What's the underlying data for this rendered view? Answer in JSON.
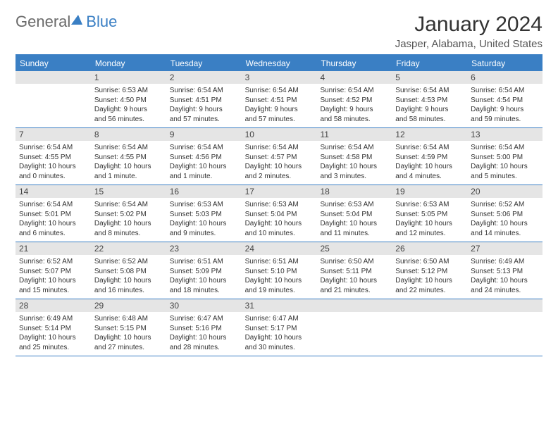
{
  "logo": {
    "part1": "General",
    "part2": "Blue"
  },
  "title": "January 2024",
  "location": "Jasper, Alabama, United States",
  "colors": {
    "accent": "#3a7fc4",
    "daybar": "#e5e5e5",
    "text": "#333333",
    "bg": "#ffffff"
  },
  "weekdays": [
    "Sunday",
    "Monday",
    "Tuesday",
    "Wednesday",
    "Thursday",
    "Friday",
    "Saturday"
  ],
  "weeks": [
    [
      {
        "day": ""
      },
      {
        "day": "1",
        "sunrise": "Sunrise: 6:53 AM",
        "sunset": "Sunset: 4:50 PM",
        "daylight1": "Daylight: 9 hours",
        "daylight2": "and 56 minutes."
      },
      {
        "day": "2",
        "sunrise": "Sunrise: 6:54 AM",
        "sunset": "Sunset: 4:51 PM",
        "daylight1": "Daylight: 9 hours",
        "daylight2": "and 57 minutes."
      },
      {
        "day": "3",
        "sunrise": "Sunrise: 6:54 AM",
        "sunset": "Sunset: 4:51 PM",
        "daylight1": "Daylight: 9 hours",
        "daylight2": "and 57 minutes."
      },
      {
        "day": "4",
        "sunrise": "Sunrise: 6:54 AM",
        "sunset": "Sunset: 4:52 PM",
        "daylight1": "Daylight: 9 hours",
        "daylight2": "and 58 minutes."
      },
      {
        "day": "5",
        "sunrise": "Sunrise: 6:54 AM",
        "sunset": "Sunset: 4:53 PM",
        "daylight1": "Daylight: 9 hours",
        "daylight2": "and 58 minutes."
      },
      {
        "day": "6",
        "sunrise": "Sunrise: 6:54 AM",
        "sunset": "Sunset: 4:54 PM",
        "daylight1": "Daylight: 9 hours",
        "daylight2": "and 59 minutes."
      }
    ],
    [
      {
        "day": "7",
        "sunrise": "Sunrise: 6:54 AM",
        "sunset": "Sunset: 4:55 PM",
        "daylight1": "Daylight: 10 hours",
        "daylight2": "and 0 minutes."
      },
      {
        "day": "8",
        "sunrise": "Sunrise: 6:54 AM",
        "sunset": "Sunset: 4:55 PM",
        "daylight1": "Daylight: 10 hours",
        "daylight2": "and 1 minute."
      },
      {
        "day": "9",
        "sunrise": "Sunrise: 6:54 AM",
        "sunset": "Sunset: 4:56 PM",
        "daylight1": "Daylight: 10 hours",
        "daylight2": "and 1 minute."
      },
      {
        "day": "10",
        "sunrise": "Sunrise: 6:54 AM",
        "sunset": "Sunset: 4:57 PM",
        "daylight1": "Daylight: 10 hours",
        "daylight2": "and 2 minutes."
      },
      {
        "day": "11",
        "sunrise": "Sunrise: 6:54 AM",
        "sunset": "Sunset: 4:58 PM",
        "daylight1": "Daylight: 10 hours",
        "daylight2": "and 3 minutes."
      },
      {
        "day": "12",
        "sunrise": "Sunrise: 6:54 AM",
        "sunset": "Sunset: 4:59 PM",
        "daylight1": "Daylight: 10 hours",
        "daylight2": "and 4 minutes."
      },
      {
        "day": "13",
        "sunrise": "Sunrise: 6:54 AM",
        "sunset": "Sunset: 5:00 PM",
        "daylight1": "Daylight: 10 hours",
        "daylight2": "and 5 minutes."
      }
    ],
    [
      {
        "day": "14",
        "sunrise": "Sunrise: 6:54 AM",
        "sunset": "Sunset: 5:01 PM",
        "daylight1": "Daylight: 10 hours",
        "daylight2": "and 6 minutes."
      },
      {
        "day": "15",
        "sunrise": "Sunrise: 6:54 AM",
        "sunset": "Sunset: 5:02 PM",
        "daylight1": "Daylight: 10 hours",
        "daylight2": "and 8 minutes."
      },
      {
        "day": "16",
        "sunrise": "Sunrise: 6:53 AM",
        "sunset": "Sunset: 5:03 PM",
        "daylight1": "Daylight: 10 hours",
        "daylight2": "and 9 minutes."
      },
      {
        "day": "17",
        "sunrise": "Sunrise: 6:53 AM",
        "sunset": "Sunset: 5:04 PM",
        "daylight1": "Daylight: 10 hours",
        "daylight2": "and 10 minutes."
      },
      {
        "day": "18",
        "sunrise": "Sunrise: 6:53 AM",
        "sunset": "Sunset: 5:04 PM",
        "daylight1": "Daylight: 10 hours",
        "daylight2": "and 11 minutes."
      },
      {
        "day": "19",
        "sunrise": "Sunrise: 6:53 AM",
        "sunset": "Sunset: 5:05 PM",
        "daylight1": "Daylight: 10 hours",
        "daylight2": "and 12 minutes."
      },
      {
        "day": "20",
        "sunrise": "Sunrise: 6:52 AM",
        "sunset": "Sunset: 5:06 PM",
        "daylight1": "Daylight: 10 hours",
        "daylight2": "and 14 minutes."
      }
    ],
    [
      {
        "day": "21",
        "sunrise": "Sunrise: 6:52 AM",
        "sunset": "Sunset: 5:07 PM",
        "daylight1": "Daylight: 10 hours",
        "daylight2": "and 15 minutes."
      },
      {
        "day": "22",
        "sunrise": "Sunrise: 6:52 AM",
        "sunset": "Sunset: 5:08 PM",
        "daylight1": "Daylight: 10 hours",
        "daylight2": "and 16 minutes."
      },
      {
        "day": "23",
        "sunrise": "Sunrise: 6:51 AM",
        "sunset": "Sunset: 5:09 PM",
        "daylight1": "Daylight: 10 hours",
        "daylight2": "and 18 minutes."
      },
      {
        "day": "24",
        "sunrise": "Sunrise: 6:51 AM",
        "sunset": "Sunset: 5:10 PM",
        "daylight1": "Daylight: 10 hours",
        "daylight2": "and 19 minutes."
      },
      {
        "day": "25",
        "sunrise": "Sunrise: 6:50 AM",
        "sunset": "Sunset: 5:11 PM",
        "daylight1": "Daylight: 10 hours",
        "daylight2": "and 21 minutes."
      },
      {
        "day": "26",
        "sunrise": "Sunrise: 6:50 AM",
        "sunset": "Sunset: 5:12 PM",
        "daylight1": "Daylight: 10 hours",
        "daylight2": "and 22 minutes."
      },
      {
        "day": "27",
        "sunrise": "Sunrise: 6:49 AM",
        "sunset": "Sunset: 5:13 PM",
        "daylight1": "Daylight: 10 hours",
        "daylight2": "and 24 minutes."
      }
    ],
    [
      {
        "day": "28",
        "sunrise": "Sunrise: 6:49 AM",
        "sunset": "Sunset: 5:14 PM",
        "daylight1": "Daylight: 10 hours",
        "daylight2": "and 25 minutes."
      },
      {
        "day": "29",
        "sunrise": "Sunrise: 6:48 AM",
        "sunset": "Sunset: 5:15 PM",
        "daylight1": "Daylight: 10 hours",
        "daylight2": "and 27 minutes."
      },
      {
        "day": "30",
        "sunrise": "Sunrise: 6:47 AM",
        "sunset": "Sunset: 5:16 PM",
        "daylight1": "Daylight: 10 hours",
        "daylight2": "and 28 minutes."
      },
      {
        "day": "31",
        "sunrise": "Sunrise: 6:47 AM",
        "sunset": "Sunset: 5:17 PM",
        "daylight1": "Daylight: 10 hours",
        "daylight2": "and 30 minutes."
      },
      {
        "day": ""
      },
      {
        "day": ""
      },
      {
        "day": ""
      }
    ]
  ]
}
